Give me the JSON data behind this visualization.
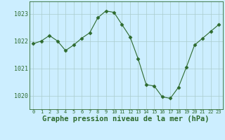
{
  "x": [
    0,
    1,
    2,
    3,
    4,
    5,
    6,
    7,
    8,
    9,
    10,
    11,
    12,
    13,
    14,
    15,
    16,
    17,
    18,
    19,
    20,
    21,
    22,
    23
  ],
  "y": [
    1021.9,
    1022.0,
    1022.2,
    1022.0,
    1021.65,
    1021.85,
    1022.1,
    1022.3,
    1022.85,
    1023.1,
    1023.05,
    1022.6,
    1022.15,
    1021.35,
    1020.4,
    1020.35,
    1019.95,
    1019.9,
    1020.3,
    1021.05,
    1021.85,
    1022.1,
    1022.35,
    1022.6
  ],
  "line_color": "#2d6a2d",
  "marker": "D",
  "marker_size": 2.5,
  "background_color": "#cceeff",
  "grid_color": "#aacccc",
  "xlabel": "Graphe pression niveau de la mer (hPa)",
  "xlabel_fontsize": 7.5,
  "ylabel_ticks": [
    1020,
    1021,
    1022,
    1023
  ],
  "xlim": [
    -0.5,
    23.5
  ],
  "ylim": [
    1019.5,
    1023.45
  ],
  "tick_color": "#2d6a2d",
  "border_color": "#2d6a2d"
}
